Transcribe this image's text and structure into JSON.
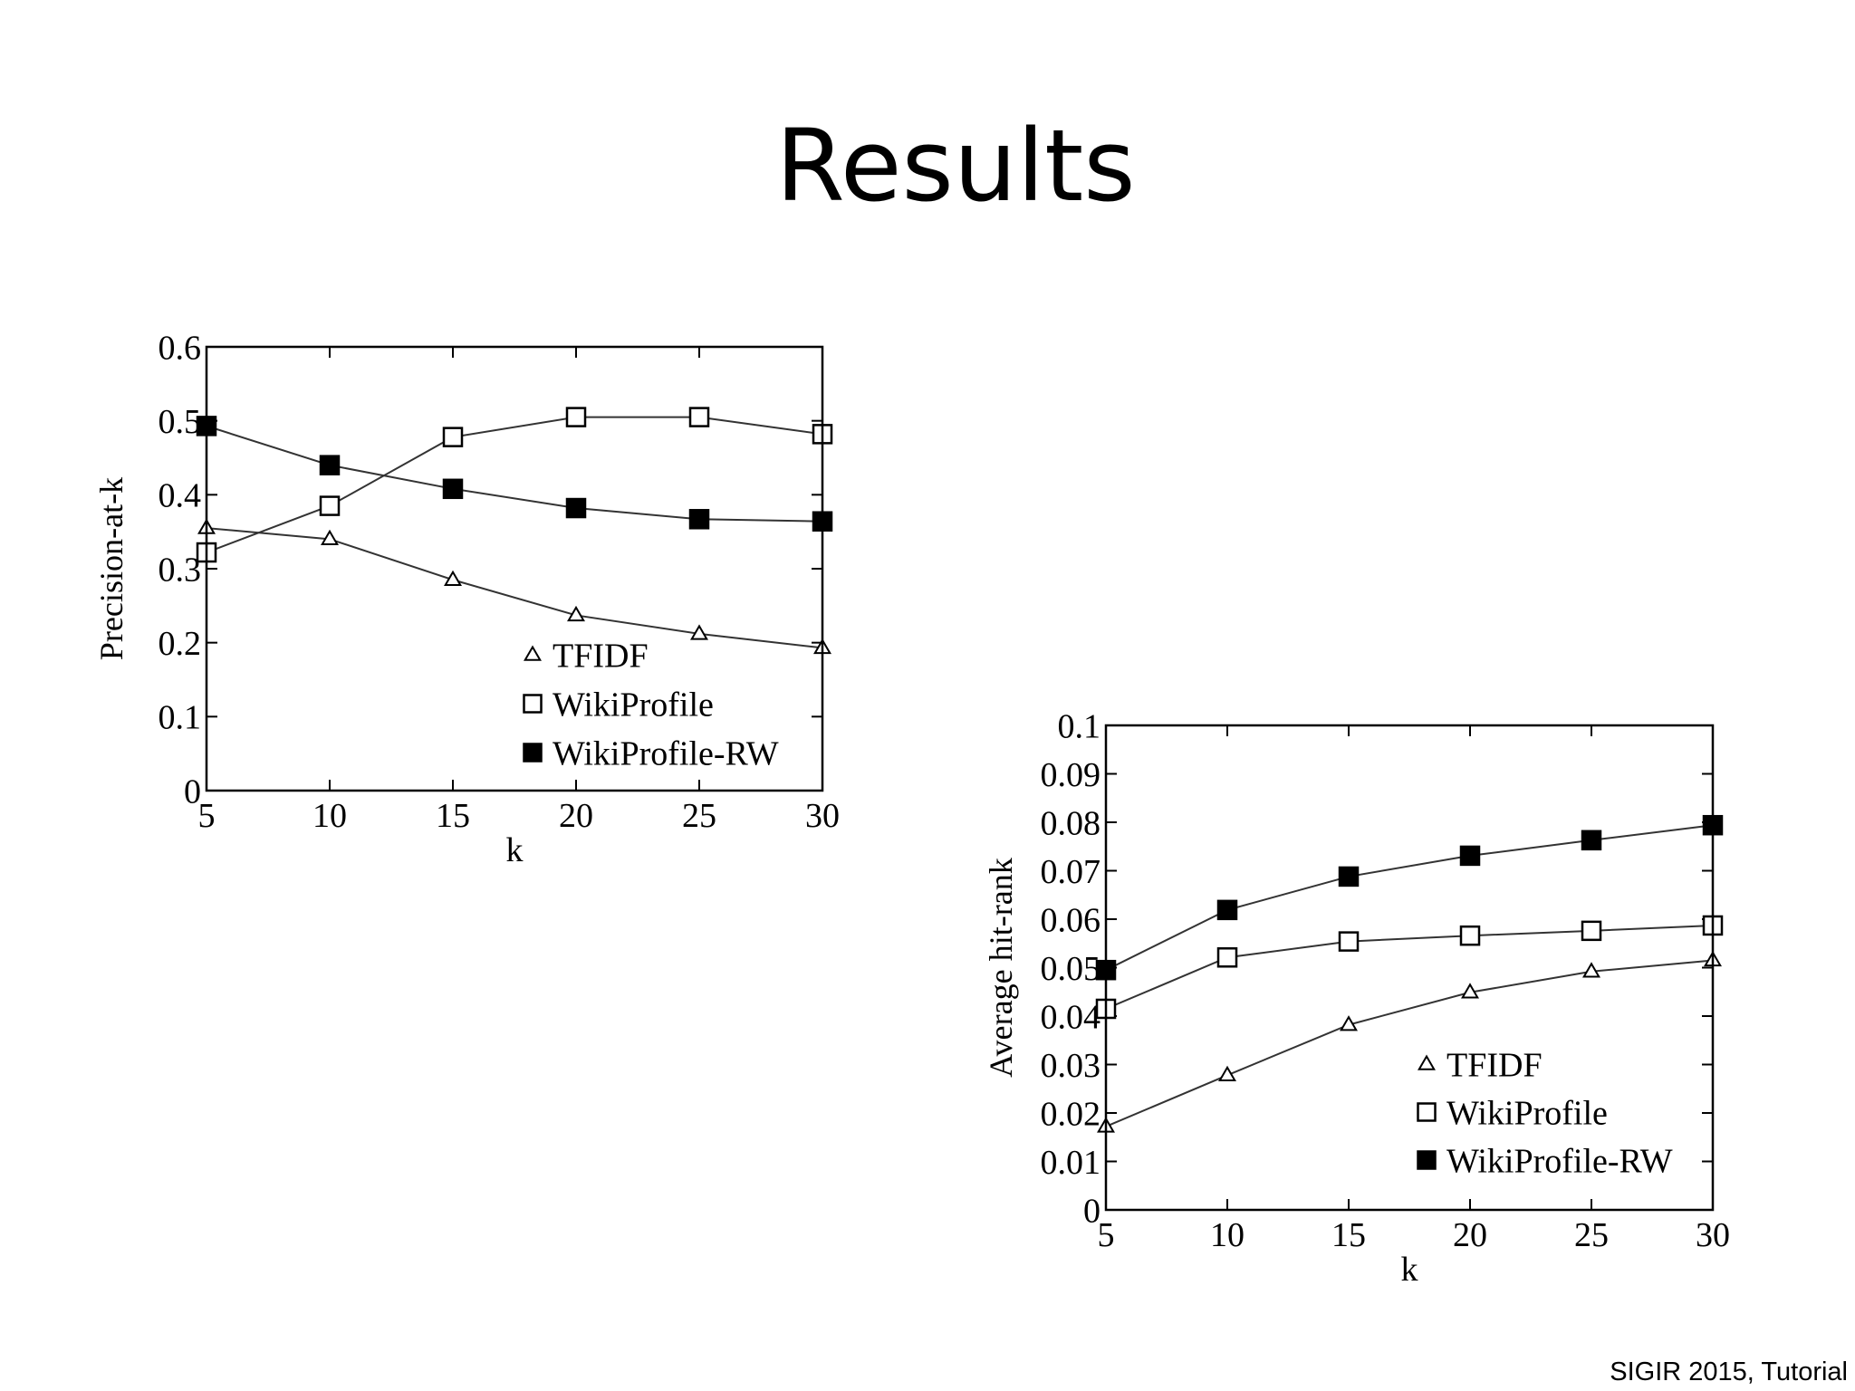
{
  "slide": {
    "title": "Results",
    "footer": "SIGIR 2015, Tutorial"
  },
  "chart_data": [
    {
      "type": "line",
      "xlabel": "k",
      "ylabel": "Precision-at-k",
      "x": [
        5,
        10,
        15,
        20,
        25,
        30
      ],
      "xticks": [
        "5",
        "10",
        "15",
        "20",
        "25",
        "30"
      ],
      "yticks": [
        "0",
        "0.1",
        "0.2",
        "0.3",
        "0.4",
        "0.5",
        "0.6"
      ],
      "xlim": [
        5,
        30
      ],
      "ylim": [
        0,
        0.6
      ],
      "legend_position": "bottom-right",
      "series": [
        {
          "name": "TFIDF",
          "marker": "triangle-open",
          "values": [
            0.355,
            0.34,
            0.285,
            0.237,
            0.212,
            0.193
          ]
        },
        {
          "name": "WikiProfile",
          "marker": "square-open",
          "values": [
            0.322,
            0.385,
            0.478,
            0.505,
            0.505,
            0.482
          ]
        },
        {
          "name": "WikiProfile-RW",
          "marker": "square-filled",
          "values": [
            0.493,
            0.44,
            0.408,
            0.382,
            0.367,
            0.364
          ]
        }
      ]
    },
    {
      "type": "line",
      "xlabel": "k",
      "ylabel": "Average hit-rank",
      "x": [
        5,
        10,
        15,
        20,
        25,
        30
      ],
      "xticks": [
        "5",
        "10",
        "15",
        "20",
        "25",
        "30"
      ],
      "yticks": [
        "0",
        "0.01",
        "0.02",
        "0.03",
        "0.04",
        "0.05",
        "0.06",
        "0.07",
        "0.08",
        "0.09",
        "0.1"
      ],
      "xlim": [
        5,
        30
      ],
      "ylim": [
        0,
        0.1
      ],
      "legend_position": "bottom-right",
      "series": [
        {
          "name": "TFIDF",
          "marker": "triangle-open",
          "values": [
            0.0172,
            0.0278,
            0.0382,
            0.0449,
            0.0492,
            0.0515
          ]
        },
        {
          "name": "WikiProfile",
          "marker": "square-open",
          "values": [
            0.0415,
            0.0521,
            0.0554,
            0.0566,
            0.0576,
            0.0587
          ]
        },
        {
          "name": "WikiProfile-RW",
          "marker": "square-filled",
          "values": [
            0.0495,
            0.0619,
            0.0688,
            0.0731,
            0.0763,
            0.0794
          ]
        }
      ]
    }
  ]
}
